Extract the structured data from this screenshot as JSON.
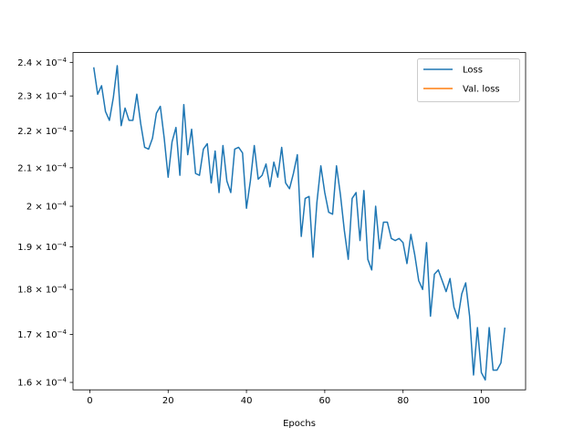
{
  "chart_data": {
    "type": "line",
    "xlabel": "Epochs",
    "xlim": [
      -4.3,
      111.3
    ],
    "ylim": [
      0.0001585,
      0.000243
    ],
    "yscale": "log",
    "grid": false,
    "legend_placement": "top-right",
    "x_ticks": [
      0,
      20,
      40,
      60,
      80,
      100
    ],
    "x_tick_labels": [
      "0",
      "20",
      "40",
      "60",
      "80",
      "100"
    ],
    "y_ticks": [
      0.00016,
      0.00017,
      0.00018,
      0.00019,
      0.0002,
      0.00021,
      0.00022,
      0.00023,
      0.00024
    ],
    "y_tick_labels": [
      {
        "mantissa": "1.6",
        "exponent": "−4"
      },
      {
        "mantissa": "1.7",
        "exponent": "−4"
      },
      {
        "mantissa": "1.8",
        "exponent": "−4"
      },
      {
        "mantissa": "1.9",
        "exponent": "−4"
      },
      {
        "mantissa": "2",
        "exponent": "−4"
      },
      {
        "mantissa": "2.1",
        "exponent": "−4"
      },
      {
        "mantissa": "2.2",
        "exponent": "−4"
      },
      {
        "mantissa": "2.3",
        "exponent": "−4"
      },
      {
        "mantissa": "2.4",
        "exponent": "−4"
      }
    ],
    "y_tick_base": "10",
    "y_tick_times": "×",
    "series": [
      {
        "name": "Loss",
        "color": "#1f77b4",
        "x": [
          1,
          2,
          3,
          4,
          5,
          6,
          7,
          8,
          9,
          10,
          11,
          12,
          13,
          14,
          15,
          16,
          17,
          18,
          19,
          20,
          21,
          22,
          23,
          24,
          25,
          26,
          27,
          28,
          29,
          30,
          31,
          32,
          33,
          34,
          35,
          36,
          37,
          38,
          39,
          40,
          41,
          42,
          43,
          44,
          45,
          46,
          47,
          48,
          49,
          50,
          51,
          52,
          53,
          54,
          55,
          56,
          57,
          58,
          59,
          60,
          61,
          62,
          63,
          64,
          65,
          66,
          67,
          68,
          69,
          70,
          71,
          72,
          73,
          74,
          75,
          76,
          77,
          78,
          79,
          80,
          81,
          82,
          83,
          84,
          85,
          86,
          87,
          88,
          89,
          90,
          91,
          92,
          93,
          94,
          95,
          96,
          97,
          98,
          99,
          100,
          101,
          102,
          103,
          104,
          105,
          106
        ],
        "y": [
          0.0002385,
          0.0002305,
          0.000233,
          0.0002255,
          0.000223,
          0.0002295,
          0.000239,
          0.0002215,
          0.0002265,
          0.000223,
          0.000223,
          0.0002305,
          0.000222,
          0.0002155,
          0.000215,
          0.000218,
          0.000225,
          0.000227,
          0.000218,
          0.0002075,
          0.000217,
          0.000221,
          0.000208,
          0.0002275,
          0.0002135,
          0.0002205,
          0.0002085,
          0.000208,
          0.000215,
          0.0002165,
          0.000206,
          0.0002145,
          0.0002035,
          0.000216,
          0.0002065,
          0.0002035,
          0.000215,
          0.0002155,
          0.000214,
          0.0001995,
          0.0002065,
          0.000216,
          0.000207,
          0.000208,
          0.000211,
          0.000205,
          0.0002115,
          0.0002075,
          0.0002155,
          0.000206,
          0.0002045,
          0.0002085,
          0.0002135,
          0.0001925,
          0.000202,
          0.0002025,
          0.0001875,
          0.000201,
          0.0002105,
          0.0002035,
          0.0001985,
          0.000198,
          0.0002105,
          0.000203,
          0.000194,
          0.000187,
          0.000202,
          0.0002035,
          0.0001915,
          0.000204,
          0.000187,
          0.0001845,
          0.0002,
          0.0001895,
          0.000196,
          0.000196,
          0.000192,
          0.0001915,
          0.000192,
          0.000191,
          0.000186,
          0.000193,
          0.000188,
          0.000182,
          0.00018,
          0.000191,
          0.000174,
          0.0001835,
          0.0001845,
          0.000182,
          0.0001795,
          0.0001825,
          0.000176,
          0.0001735,
          0.000179,
          0.0001815,
          0.000174,
          0.0001615,
          0.0001715,
          0.000162,
          0.0001605,
          0.0001715,
          0.0001625,
          0.0001625,
          0.000164,
          0.0001715
        ]
      },
      {
        "name": "Val. loss",
        "color": "#ff7f0e",
        "x": [],
        "y": []
      }
    ]
  }
}
